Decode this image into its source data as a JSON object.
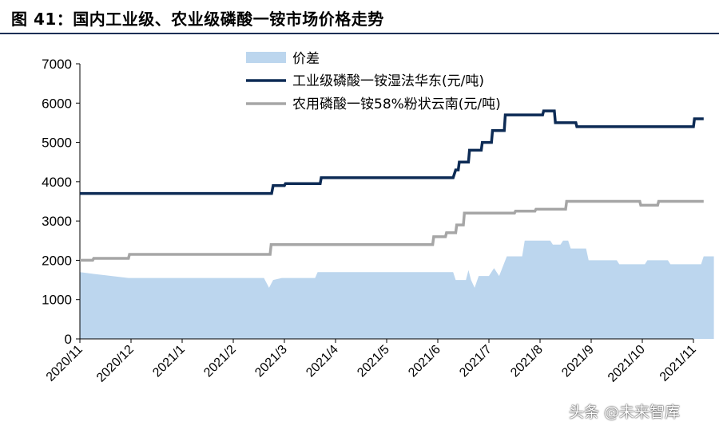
{
  "title": "图 41：国内工业级、农业级磷酸一铵市场价格走势",
  "watermark": "头条 @未来智库",
  "colors": {
    "industrial": "#0d2b55",
    "agri": "#a6a6a6",
    "spread": "#bcd6ee",
    "title_rule": "#1c2f55"
  },
  "chart_data": {
    "type": "line",
    "x_ticks": [
      "2020/11",
      "2020/12",
      "2021/1",
      "2021/2",
      "2021/3",
      "2021/4",
      "2021/5",
      "2021/6",
      "2021/7",
      "2021/8",
      "2021/9",
      "2021/10",
      "2021/11"
    ],
    "ylim": [
      0,
      7000
    ],
    "y_ticks": [
      0,
      1000,
      2000,
      3000,
      4000,
      5000,
      6000,
      7000
    ],
    "legend_position": "top",
    "series": [
      {
        "name": "价差",
        "kind": "area",
        "color": "#bcd6ee",
        "points": [
          [
            0,
            1700
          ],
          [
            0.3,
            1650
          ],
          [
            0.95,
            1550
          ],
          [
            3.6,
            1550
          ],
          [
            3.7,
            1300
          ],
          [
            3.78,
            1500
          ],
          [
            3.95,
            1550
          ],
          [
            4.6,
            1550
          ],
          [
            4.65,
            1700
          ],
          [
            7.3,
            1700
          ],
          [
            7.35,
            1500
          ],
          [
            7.55,
            1500
          ],
          [
            7.6,
            1750
          ],
          [
            7.65,
            1500
          ],
          [
            7.72,
            1300
          ],
          [
            7.8,
            1600
          ],
          [
            8.0,
            1600
          ],
          [
            8.1,
            1800
          ],
          [
            8.2,
            1600
          ],
          [
            8.35,
            2100
          ],
          [
            8.65,
            2100
          ],
          [
            8.7,
            2500
          ],
          [
            9.2,
            2500
          ],
          [
            9.25,
            2400
          ],
          [
            9.4,
            2400
          ],
          [
            9.45,
            2500
          ],
          [
            9.55,
            2500
          ],
          [
            9.6,
            2300
          ],
          [
            9.9,
            2300
          ],
          [
            9.95,
            2000
          ],
          [
            10.5,
            2000
          ],
          [
            10.55,
            1900
          ],
          [
            11.05,
            1900
          ],
          [
            11.1,
            2000
          ],
          [
            11.5,
            2000
          ],
          [
            11.55,
            1900
          ],
          [
            12.15,
            1900
          ],
          [
            12.2,
            2100
          ],
          [
            12.4,
            2100
          ]
        ]
      },
      {
        "name": "工业级磷酸一铵湿法华东(元/吨)",
        "kind": "line",
        "color": "#0d2b55",
        "points": [
          [
            0,
            3700
          ],
          [
            3.75,
            3700
          ],
          [
            3.78,
            3900
          ],
          [
            4.0,
            3900
          ],
          [
            4.02,
            3950
          ],
          [
            4.7,
            3950
          ],
          [
            4.72,
            4100
          ],
          [
            7.3,
            4100
          ],
          [
            7.35,
            4300
          ],
          [
            7.4,
            4300
          ],
          [
            7.42,
            4500
          ],
          [
            7.6,
            4500
          ],
          [
            7.62,
            4800
          ],
          [
            7.85,
            4800
          ],
          [
            7.87,
            5000
          ],
          [
            8.05,
            5000
          ],
          [
            8.07,
            5300
          ],
          [
            8.3,
            5300
          ],
          [
            8.32,
            5700
          ],
          [
            9.05,
            5700
          ],
          [
            9.07,
            5800
          ],
          [
            9.28,
            5800
          ],
          [
            9.3,
            5500
          ],
          [
            9.7,
            5500
          ],
          [
            9.72,
            5400
          ],
          [
            12.0,
            5400
          ],
          [
            12.02,
            5600
          ],
          [
            12.2,
            5600
          ]
        ]
      },
      {
        "name": "农用磷酸一铵58%粉状云南(元/吨)",
        "kind": "line",
        "color": "#a6a6a6",
        "points": [
          [
            0,
            2000
          ],
          [
            0.25,
            2000
          ],
          [
            0.27,
            2050
          ],
          [
            0.95,
            2050
          ],
          [
            0.97,
            2150
          ],
          [
            3.72,
            2150
          ],
          [
            3.74,
            2400
          ],
          [
            6.9,
            2400
          ],
          [
            6.92,
            2600
          ],
          [
            7.15,
            2600
          ],
          [
            7.17,
            2700
          ],
          [
            7.35,
            2700
          ],
          [
            7.37,
            2900
          ],
          [
            7.5,
            2900
          ],
          [
            7.52,
            3200
          ],
          [
            8.5,
            3200
          ],
          [
            8.52,
            3250
          ],
          [
            8.9,
            3250
          ],
          [
            8.92,
            3300
          ],
          [
            9.5,
            3300
          ],
          [
            9.52,
            3500
          ],
          [
            10.95,
            3500
          ],
          [
            10.97,
            3400
          ],
          [
            11.3,
            3400
          ],
          [
            11.32,
            3500
          ],
          [
            12.2,
            3500
          ]
        ]
      }
    ]
  }
}
